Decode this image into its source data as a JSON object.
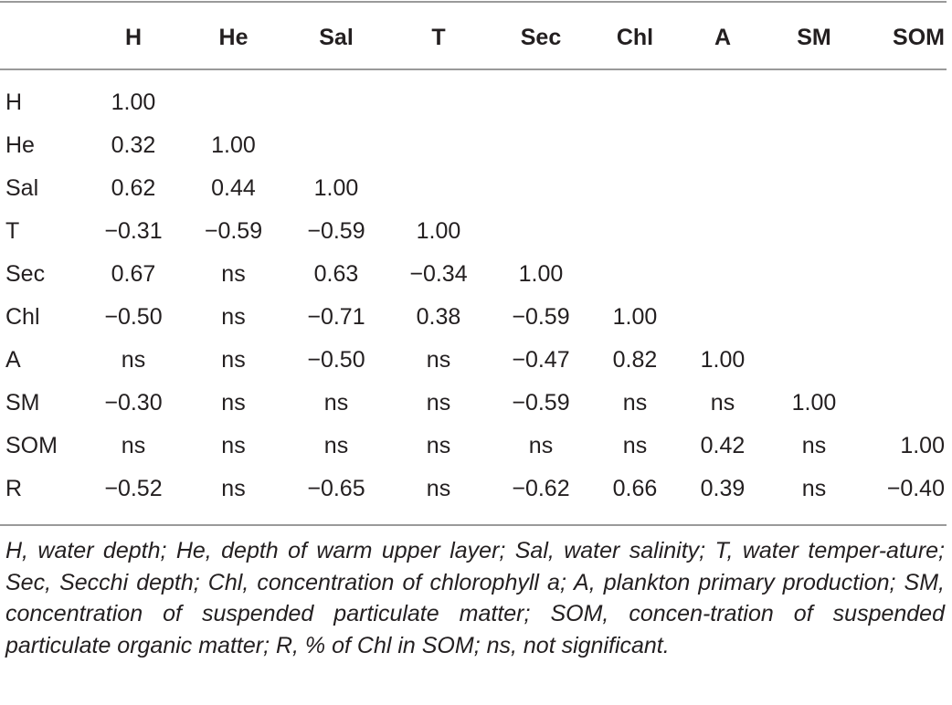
{
  "table": {
    "columns": [
      "",
      "H",
      "He",
      "Sal",
      "T",
      "Sec",
      "Chl",
      "A",
      "SM",
      "SOM"
    ],
    "rows": [
      {
        "label": "H",
        "values": [
          "1.00",
          "",
          "",
          "",
          "",
          "",
          "",
          "",
          ""
        ]
      },
      {
        "label": "He",
        "values": [
          "0.32",
          "1.00",
          "",
          "",
          "",
          "",
          "",
          "",
          ""
        ]
      },
      {
        "label": "Sal",
        "values": [
          "0.62",
          "0.44",
          "1.00",
          "",
          "",
          "",
          "",
          "",
          ""
        ]
      },
      {
        "label": "T",
        "values": [
          "−0.31",
          "−0.59",
          "−0.59",
          "1.00",
          "",
          "",
          "",
          "",
          ""
        ]
      },
      {
        "label": "Sec",
        "values": [
          "0.67",
          "ns",
          "0.63",
          "−0.34",
          "1.00",
          "",
          "",
          "",
          ""
        ]
      },
      {
        "label": "Chl",
        "values": [
          "−0.50",
          "ns",
          "−0.71",
          "0.38",
          "−0.59",
          "1.00",
          "",
          "",
          ""
        ]
      },
      {
        "label": "A",
        "values": [
          "ns",
          "ns",
          "−0.50",
          "ns",
          "−0.47",
          "0.82",
          "1.00",
          "",
          ""
        ]
      },
      {
        "label": "SM",
        "values": [
          "−0.30",
          "ns",
          "ns",
          "ns",
          "−0.59",
          "ns",
          "ns",
          "1.00",
          ""
        ]
      },
      {
        "label": "SOM",
        "values": [
          "ns",
          "ns",
          "ns",
          "ns",
          "ns",
          "ns",
          "0.42",
          "ns",
          "1.00"
        ]
      },
      {
        "label": "R",
        "values": [
          "−0.52",
          "ns",
          "−0.65",
          "ns",
          "−0.62",
          "0.66",
          "0.39",
          "ns",
          "−0.40"
        ]
      }
    ]
  },
  "footnote": "H, water depth; He, depth of warm upper layer; Sal, water salinity; T, water temper-ature; Sec, Secchi depth; Chl, concentration of chlorophyll a; A, plankton primary production; SM, concentration of suspended particulate matter; SOM, concen-tration of suspended particulate organic matter; R, % of Chl in SOM; ns, not significant."
}
